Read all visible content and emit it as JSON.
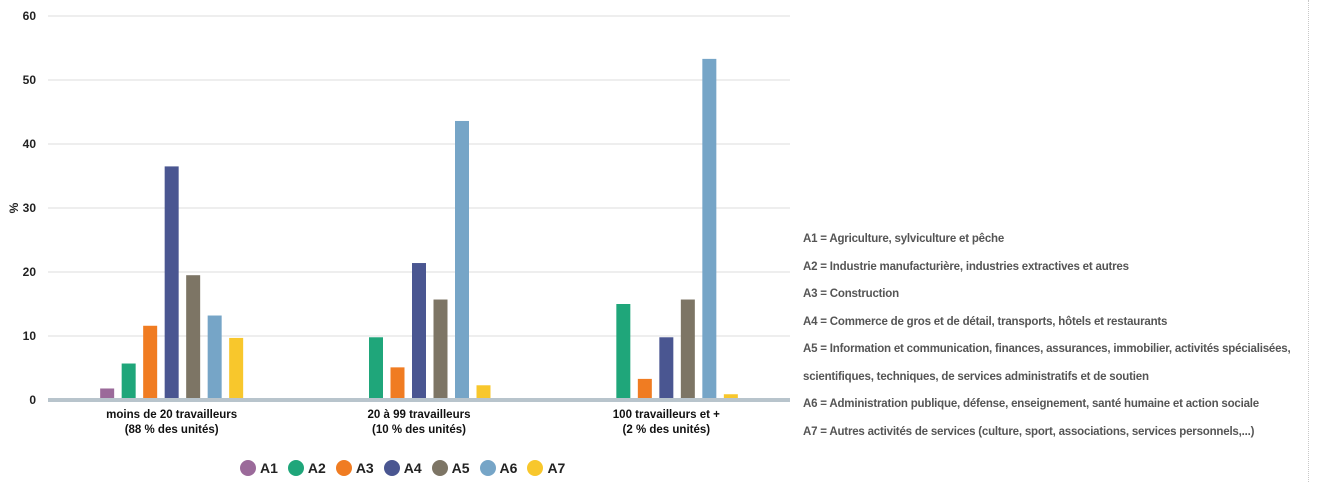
{
  "chart_data": {
    "type": "bar",
    "ylabel": "%",
    "xlabel": "",
    "ylim": [
      0,
      60
    ],
    "yticks": [
      0,
      10,
      20,
      30,
      40,
      50,
      60
    ],
    "grid": true,
    "legend_position": "bottom",
    "categories": [
      [
        "moins de 20 travailleurs",
        "(88 % des unités)"
      ],
      [
        "20 à 99 travailleurs",
        "(10 % des unités)"
      ],
      [
        "100 travailleurs et +",
        "(2 % des unités)"
      ]
    ],
    "series": [
      {
        "name": "A1",
        "color": "#9b6a9a",
        "values": [
          1.8,
          0,
          0
        ]
      },
      {
        "name": "A2",
        "color": "#1fa67a",
        "values": [
          5.7,
          9.8,
          15.0
        ]
      },
      {
        "name": "A3",
        "color": "#f07c22",
        "values": [
          11.6,
          5.1,
          3.3
        ]
      },
      {
        "name": "A4",
        "color": "#4a5691",
        "values": [
          36.5,
          21.4,
          9.8
        ]
      },
      {
        "name": "A5",
        "color": "#7d7565",
        "values": [
          19.5,
          15.7,
          15.7
        ]
      },
      {
        "name": "A6",
        "color": "#76a5c7",
        "values": [
          13.2,
          43.6,
          53.3
        ]
      },
      {
        "name": "A7",
        "color": "#f8c72c",
        "values": [
          9.7,
          2.3,
          0.9
        ]
      }
    ]
  },
  "definitions": [
    "A1 = Agriculture, sylviculture et pêche",
    "A2 = Industrie manufacturière, industries extractives et autres",
    "A3 = Construction",
    "A4 = Commerce de gros et de détail, transports, hôtels et restaurants",
    "A5 = Information et communication, finances, assurances, immobilier, activités spécialisées,",
    "scientifiques, techniques, de services administratifs et de soutien",
    "A6 = Administration publique, défense, enseignement, santé humaine et action sociale",
    "A7 = Autres activités de services (culture, sport, associations, services personnels,...)"
  ]
}
